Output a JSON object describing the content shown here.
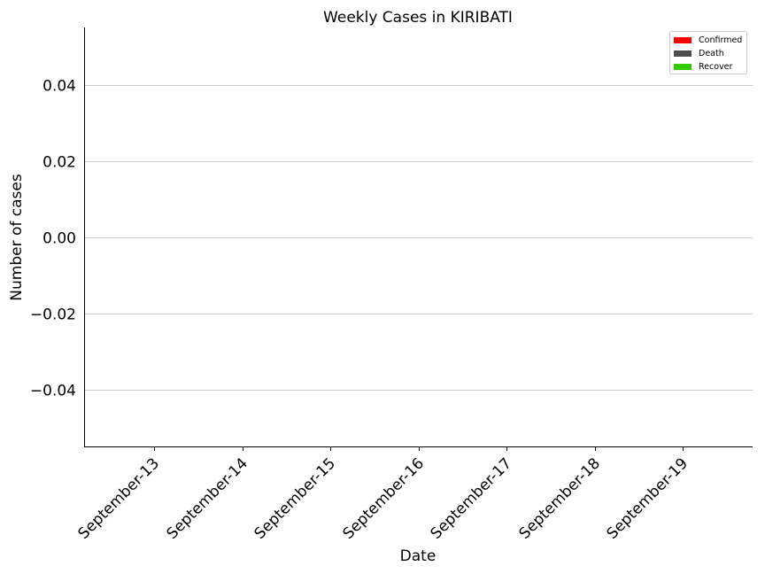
{
  "chart_data": {
    "type": "bar",
    "title": "Weekly Cases in KIRIBATI",
    "xlabel": "Date",
    "ylabel": "Number of cases",
    "categories": [
      "September-13",
      "September-14",
      "September-15",
      "September-16",
      "September-17",
      "September-18",
      "September-19"
    ],
    "series": [
      {
        "name": "Confirmed",
        "color": "#ff0000",
        "values": [
          0,
          0,
          0,
          0,
          0,
          0,
          0
        ]
      },
      {
        "name": "Death",
        "color": "#4d4d4d",
        "values": [
          0,
          0,
          0,
          0,
          0,
          0,
          0
        ]
      },
      {
        "name": "Recover",
        "color": "#33cc00",
        "values": [
          0,
          0,
          0,
          0,
          0,
          0,
          0
        ]
      }
    ],
    "ylim": [
      -0.055,
      0.055
    ],
    "yticks": [
      -0.04,
      -0.02,
      0.0,
      0.02,
      0.04
    ],
    "ytick_labels": [
      "−0.04",
      "−0.02",
      "0.00",
      "0.02",
      "0.04"
    ],
    "grid": "horizontal",
    "legend_position": "top-right"
  }
}
